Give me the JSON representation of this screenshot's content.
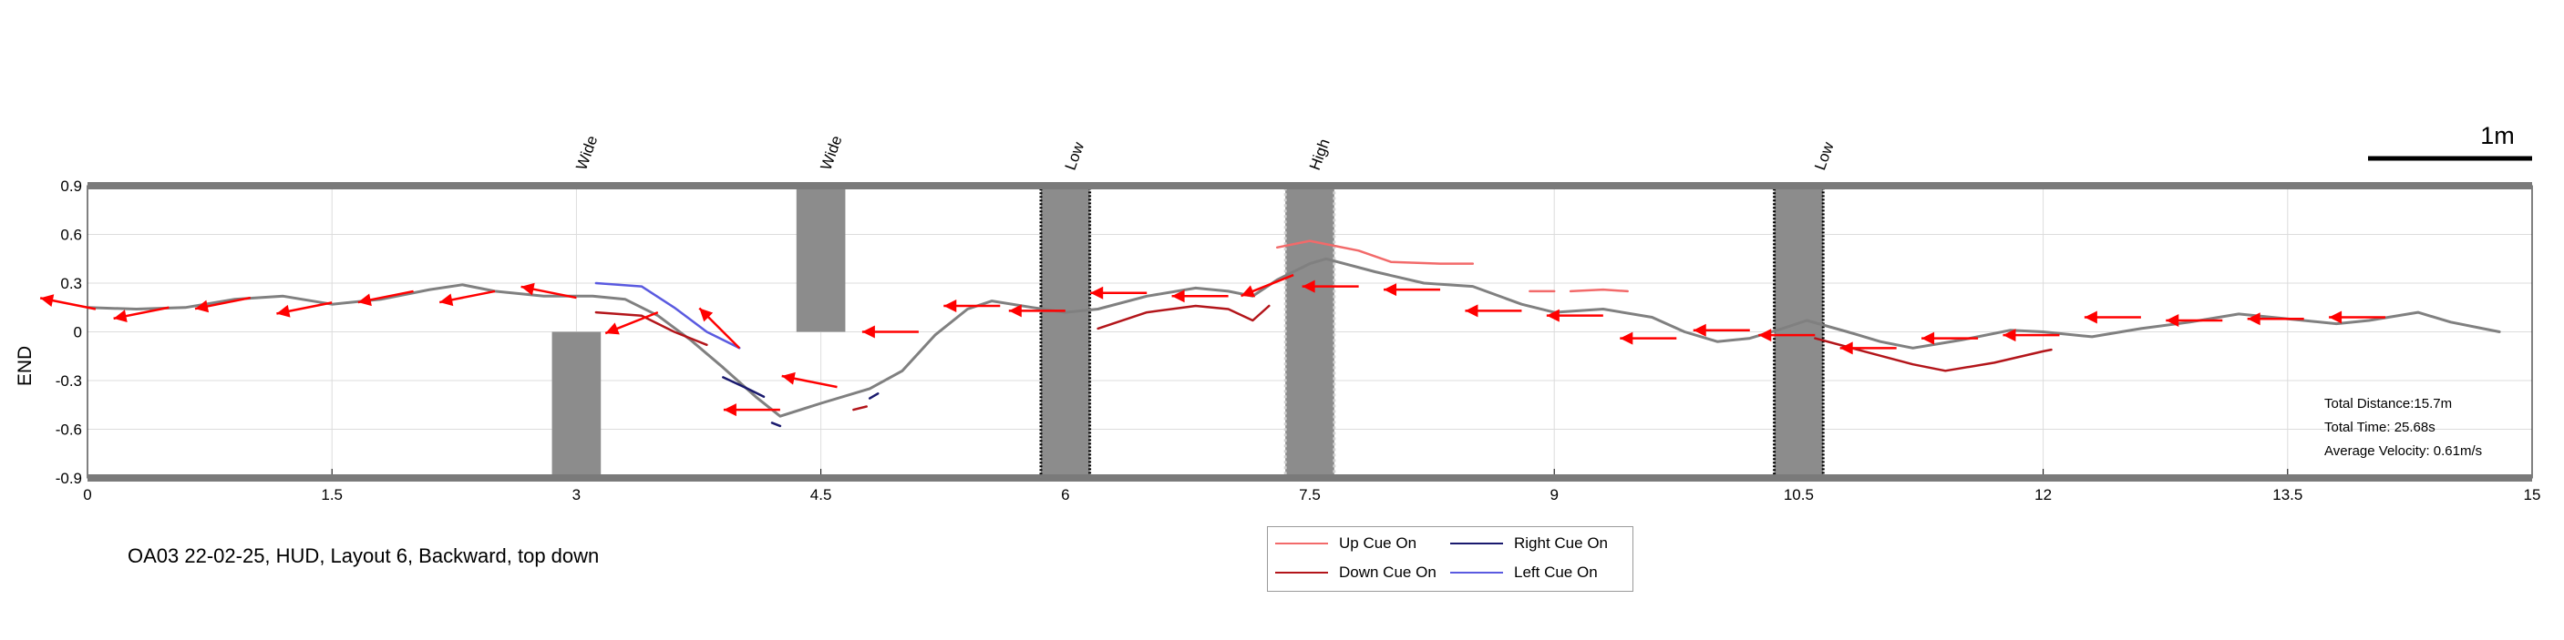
{
  "chart_data": {
    "type": "line",
    "ylabel": "END",
    "xlabel": "",
    "xlim": [
      0,
      15
    ],
    "ylim": [
      -0.9,
      0.9
    ],
    "xticks": [
      "0",
      "1.5",
      "3",
      "4.5",
      "6",
      "7.5",
      "9",
      "10.5",
      "12",
      "13.5",
      "15"
    ],
    "yticks": [
      "0.9",
      "0.6",
      "0.3",
      "0",
      "-0.3",
      "-0.6",
      "-0.9"
    ],
    "grid": true,
    "scale_bar_label": "1m",
    "caption": "OA03 22-02-25, HUD, Layout 6, Backward, top down",
    "stats": [
      "Total Distance:15.7m",
      "Total Time: 25.68s",
      "Average Velocity: 0.61m/s"
    ],
    "obstacle_labels": [
      {
        "label": "Wide",
        "x": 3.0
      },
      {
        "label": "Wide",
        "x": 4.5
      },
      {
        "label": "Low",
        "x": 6.0
      },
      {
        "label": "High",
        "x": 7.5
      },
      {
        "label": "Low",
        "x": 10.6
      }
    ],
    "obstacles": [
      {
        "x0": 2.85,
        "x1": 3.15,
        "y0": -0.9,
        "y1": 0.0,
        "style": "solid"
      },
      {
        "x0": 4.35,
        "x1": 4.65,
        "y0": 0.0,
        "y1": 0.9,
        "style": "solid"
      },
      {
        "x0": 5.85,
        "x1": 6.15,
        "y0": -0.9,
        "y1": 0.9,
        "style": "dotted-dark"
      },
      {
        "x0": 7.35,
        "x1": 7.65,
        "y0": -0.9,
        "y1": 0.9,
        "style": "dotted-light"
      },
      {
        "x0": 10.35,
        "x1": 10.65,
        "y0": -0.9,
        "y1": 0.9,
        "style": "dotted-dark"
      }
    ],
    "legend": [
      {
        "label": "Up Cue On",
        "color": "#f26a6a"
      },
      {
        "label": "Right Cue On",
        "color": "#1a1a6e"
      },
      {
        "label": "Down Cue On",
        "color": "#b3151a"
      },
      {
        "label": "Left Cue On",
        "color": "#5a5ae0"
      }
    ],
    "series": [
      {
        "role": "path",
        "color": "#808080",
        "points": [
          [
            0.0,
            0.15
          ],
          [
            0.3,
            0.14
          ],
          [
            0.6,
            0.15
          ],
          [
            0.9,
            0.2
          ],
          [
            1.2,
            0.22
          ],
          [
            1.5,
            0.17
          ],
          [
            1.8,
            0.2
          ],
          [
            2.1,
            0.26
          ],
          [
            2.3,
            0.29
          ],
          [
            2.5,
            0.25
          ],
          [
            2.8,
            0.22
          ],
          [
            3.1,
            0.22
          ],
          [
            3.3,
            0.2
          ],
          [
            3.5,
            0.1
          ],
          [
            3.7,
            -0.05
          ],
          [
            3.9,
            -0.22
          ],
          [
            4.1,
            -0.4
          ],
          [
            4.25,
            -0.52
          ],
          [
            4.5,
            -0.44
          ],
          [
            4.8,
            -0.35
          ],
          [
            5.0,
            -0.24
          ],
          [
            5.2,
            -0.02
          ],
          [
            5.4,
            0.14
          ],
          [
            5.55,
            0.19
          ],
          [
            5.8,
            0.15
          ],
          [
            6.0,
            0.12
          ],
          [
            6.2,
            0.14
          ],
          [
            6.5,
            0.22
          ],
          [
            6.8,
            0.27
          ],
          [
            7.0,
            0.25
          ],
          [
            7.15,
            0.22
          ],
          [
            7.3,
            0.32
          ],
          [
            7.5,
            0.42
          ],
          [
            7.6,
            0.45
          ],
          [
            7.9,
            0.37
          ],
          [
            8.2,
            0.3
          ],
          [
            8.5,
            0.28
          ],
          [
            8.8,
            0.17
          ],
          [
            9.0,
            0.12
          ],
          [
            9.3,
            0.14
          ],
          [
            9.6,
            0.09
          ],
          [
            9.8,
            0.0
          ],
          [
            10.0,
            -0.06
          ],
          [
            10.2,
            -0.04
          ],
          [
            10.4,
            0.02
          ],
          [
            10.55,
            0.07
          ],
          [
            10.8,
            0.0
          ],
          [
            11.0,
            -0.06
          ],
          [
            11.2,
            -0.1
          ],
          [
            11.5,
            -0.05
          ],
          [
            11.8,
            0.01
          ],
          [
            12.0,
            0.0
          ],
          [
            12.3,
            -0.03
          ],
          [
            12.6,
            0.02
          ],
          [
            12.9,
            0.06
          ],
          [
            13.2,
            0.11
          ],
          [
            13.5,
            0.08
          ],
          [
            13.8,
            0.05
          ],
          [
            14.0,
            0.07
          ],
          [
            14.3,
            0.12
          ],
          [
            14.5,
            0.06
          ],
          [
            14.8,
            0.0
          ]
        ]
      },
      {
        "role": "left-cue",
        "color": "#5a5ae0",
        "points": [
          [
            3.12,
            0.3
          ],
          [
            3.4,
            0.28
          ],
          [
            3.6,
            0.15
          ],
          [
            3.8,
            0.0
          ],
          [
            4.0,
            -0.1
          ]
        ]
      },
      {
        "role": "down-cue",
        "color": "#b3151a",
        "points": [
          [
            3.12,
            0.12
          ],
          [
            3.4,
            0.1
          ],
          [
            3.6,
            0.0
          ],
          [
            3.8,
            -0.08
          ]
        ]
      },
      {
        "role": "right-cue",
        "color": "#1a1a6e",
        "points": [
          [
            3.9,
            -0.28
          ],
          [
            4.05,
            -0.35
          ],
          [
            4.15,
            -0.4
          ]
        ]
      },
      {
        "role": "right-cue",
        "color": "#1a1a6e",
        "points": [
          [
            4.2,
            -0.56
          ],
          [
            4.25,
            -0.58
          ]
        ]
      },
      {
        "role": "right-cue",
        "color": "#1a1a6e",
        "points": [
          [
            4.8,
            -0.41
          ],
          [
            4.85,
            -0.38
          ]
        ]
      },
      {
        "role": "down-cue",
        "color": "#b3151a",
        "points": [
          [
            4.7,
            -0.48
          ],
          [
            4.78,
            -0.46
          ]
        ]
      },
      {
        "role": "down-cue",
        "color": "#b3151a",
        "points": [
          [
            6.2,
            0.02
          ],
          [
            6.5,
            0.12
          ],
          [
            6.8,
            0.16
          ],
          [
            7.0,
            0.14
          ],
          [
            7.15,
            0.07
          ],
          [
            7.25,
            0.16
          ]
        ]
      },
      {
        "role": "up-cue",
        "color": "#f26a6a",
        "points": [
          [
            7.3,
            0.52
          ],
          [
            7.5,
            0.56
          ],
          [
            7.8,
            0.5
          ],
          [
            8.0,
            0.43
          ],
          [
            8.3,
            0.42
          ],
          [
            8.5,
            0.42
          ]
        ]
      },
      {
        "role": "up-cue",
        "color": "#f26a6a",
        "points": [
          [
            8.85,
            0.25
          ],
          [
            9.0,
            0.25
          ]
        ]
      },
      {
        "role": "up-cue",
        "color": "#f26a6a",
        "points": [
          [
            9.1,
            0.25
          ],
          [
            9.3,
            0.26
          ],
          [
            9.45,
            0.25
          ]
        ]
      },
      {
        "role": "down-cue",
        "color": "#b3151a",
        "points": [
          [
            10.6,
            -0.04
          ],
          [
            10.9,
            -0.12
          ],
          [
            11.2,
            -0.2
          ],
          [
            11.4,
            -0.24
          ],
          [
            11.7,
            -0.19
          ],
          [
            12.0,
            -0.12
          ],
          [
            12.05,
            -0.11
          ]
        ]
      }
    ],
    "arrows": [
      [
        0.05,
        0.14,
        0.0,
        0.15
      ],
      [
        0.5,
        0.15,
        0.45,
        0.14
      ],
      [
        1.0,
        0.21,
        0.95,
        0.2
      ],
      [
        1.5,
        0.18,
        1.45,
        0.17
      ],
      [
        2.0,
        0.25,
        1.95,
        0.24
      ],
      [
        2.5,
        0.25,
        2.45,
        0.24
      ],
      [
        3.0,
        0.21,
        2.95,
        0.22
      ],
      [
        3.5,
        0.12,
        3.45,
        0.1
      ],
      [
        4.0,
        -0.1,
        3.95,
        -0.05
      ],
      [
        4.25,
        -0.48,
        4.2,
        -0.48
      ],
      [
        4.6,
        -0.34,
        4.55,
        -0.33
      ],
      [
        5.1,
        0.0,
        5.05,
        0.0
      ],
      [
        5.6,
        0.16,
        5.55,
        0.16
      ],
      [
        6.0,
        0.13,
        5.95,
        0.13
      ],
      [
        6.5,
        0.24,
        6.45,
        0.24
      ],
      [
        7.0,
        0.22,
        6.95,
        0.22
      ],
      [
        7.4,
        0.35,
        7.35,
        0.33
      ],
      [
        7.8,
        0.28,
        7.75,
        0.28
      ],
      [
        8.3,
        0.26,
        8.25,
        0.26
      ],
      [
        8.8,
        0.13,
        8.75,
        0.13
      ],
      [
        9.3,
        0.1,
        9.25,
        0.1
      ],
      [
        9.75,
        -0.04,
        9.7,
        -0.04
      ],
      [
        10.2,
        0.01,
        10.15,
        0.01
      ],
      [
        10.6,
        -0.02,
        10.55,
        -0.02
      ],
      [
        11.1,
        -0.1,
        11.05,
        -0.1
      ],
      [
        11.6,
        -0.04,
        11.55,
        -0.04
      ],
      [
        12.1,
        -0.02,
        12.05,
        -0.02
      ],
      [
        12.6,
        0.09,
        12.55,
        0.09
      ],
      [
        13.1,
        0.07,
        13.05,
        0.07
      ],
      [
        13.6,
        0.08,
        13.55,
        0.08
      ],
      [
        14.1,
        0.09,
        14.05,
        0.09
      ]
    ]
  }
}
